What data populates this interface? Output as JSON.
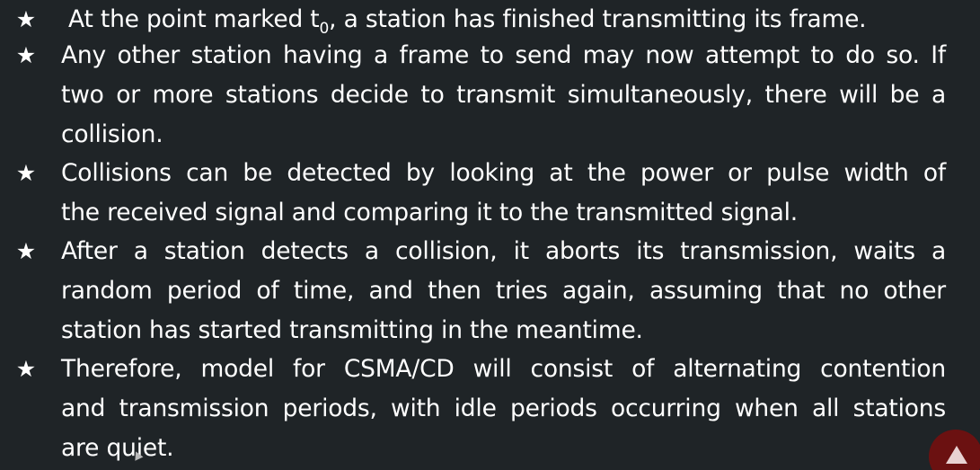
{
  "icons": {
    "bullet": "star-icon",
    "pointer": "mouse-cursor-icon",
    "badge": "channel-logo-icon"
  },
  "colors": {
    "background": "#1f2427",
    "text": "#ffffff",
    "badge": "#6b1111"
  },
  "bullets": [
    {
      "star": "★",
      "pre": "At the point marked t",
      "sub": "0",
      "post": ", a station has finished transmitting its frame."
    },
    {
      "star": "★",
      "lines": [
        "Any other station having a frame to send may now attempt to do so. If",
        "two or more stations decide to transmit simultaneously, there will be a",
        "collision."
      ]
    },
    {
      "star": "★",
      "lines": [
        "Collisions can be detected by looking at the power or pulse width of",
        "the received signal and comparing it to the transmitted signal."
      ]
    },
    {
      "star": "★",
      "lines": [
        "After a station detects a collision, it aborts its transmission, waits a",
        "random period of time, and then tries again, assuming that no other",
        "station has started transmitting in the meantime."
      ]
    },
    {
      "star": "★",
      "lines": [
        "Therefore, model for CSMA/CD will consist of alternating contention",
        "and transmission periods, with idle periods occurring when all stations",
        "are quiet."
      ]
    }
  ]
}
